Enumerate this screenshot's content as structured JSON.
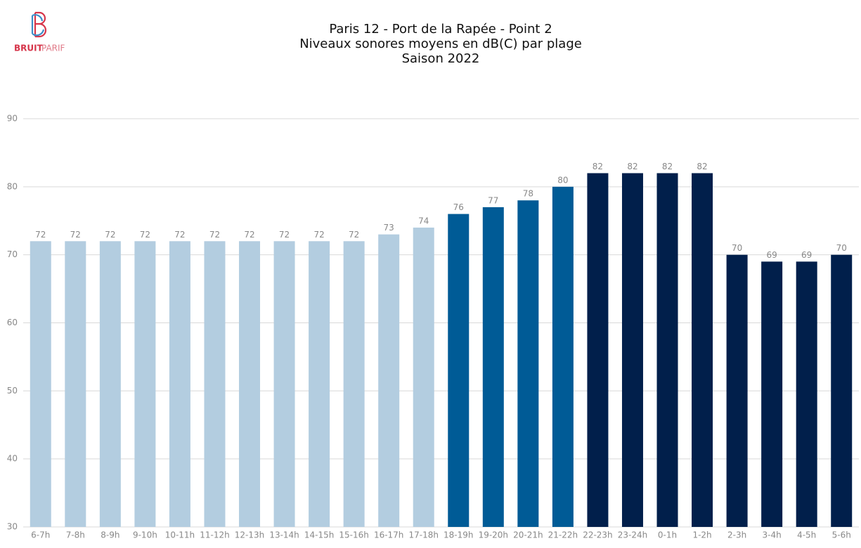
{
  "logo": {
    "bold": "BRUIT",
    "light": "PARIF"
  },
  "chart_data": {
    "type": "bar",
    "title": [
      "Paris 12 - Port de la Rapée - Point 2",
      "Niveaux sonores moyens en dB(C) par plage",
      "Saison 2022"
    ],
    "categories": [
      "6-7h",
      "7-8h",
      "8-9h",
      "9-10h",
      "10-11h",
      "11-12h",
      "12-13h",
      "13-14h",
      "14-15h",
      "15-16h",
      "16-17h",
      "17-18h",
      "18-19h",
      "19-20h",
      "20-21h",
      "21-22h",
      "22-23h",
      "23-24h",
      "0-1h",
      "1-2h",
      "2-3h",
      "3-4h",
      "4-5h",
      "5-6h"
    ],
    "values": [
      72,
      72,
      72,
      72,
      72,
      72,
      72,
      72,
      72,
      72,
      73,
      74,
      76,
      77,
      78,
      80,
      82,
      82,
      82,
      82,
      70,
      69,
      69,
      70
    ],
    "colors": [
      "#b3cde0",
      "#b3cde0",
      "#b3cde0",
      "#b3cde0",
      "#b3cde0",
      "#b3cde0",
      "#b3cde0",
      "#b3cde0",
      "#b3cde0",
      "#b3cde0",
      "#b3cde0",
      "#b3cde0",
      "#005b96",
      "#005b96",
      "#005b96",
      "#005b96",
      "#011f4b",
      "#011f4b",
      "#011f4b",
      "#011f4b",
      "#011f4b",
      "#011f4b",
      "#011f4b",
      "#011f4b"
    ],
    "ylim": [
      30,
      90
    ],
    "yticks": [
      30,
      40,
      50,
      60,
      70,
      80,
      90
    ],
    "grid": true
  }
}
